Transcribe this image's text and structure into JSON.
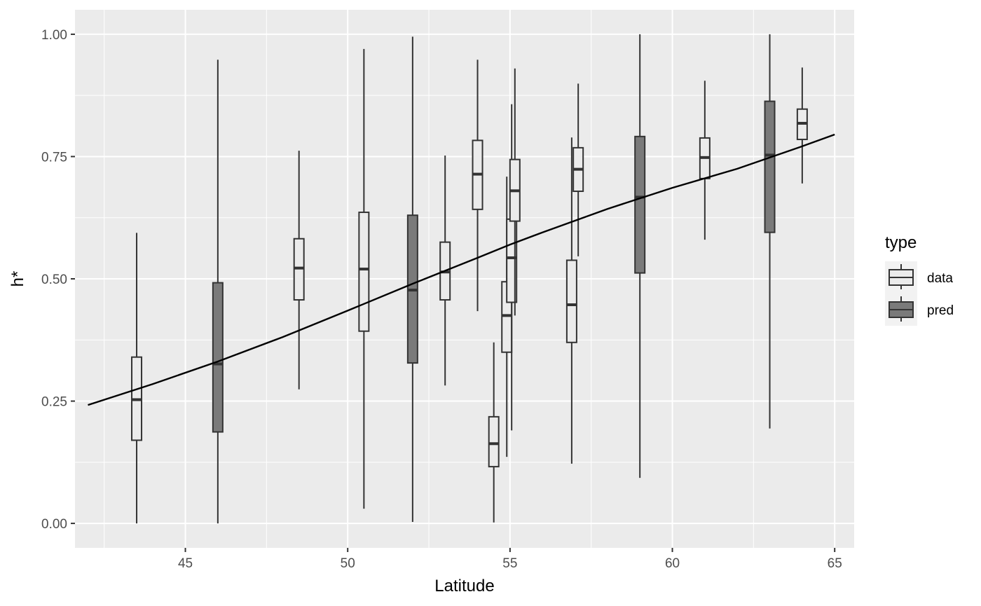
{
  "chart_data": {
    "type": "boxplot",
    "xlabel": "Latitude",
    "ylabel": "h*",
    "xlim": [
      41.6,
      65.6
    ],
    "ylim": [
      -0.05,
      1.05
    ],
    "x_ticks": [
      45,
      50,
      55,
      60,
      65
    ],
    "x_tick_labels": [
      "45",
      "50",
      "55",
      "60",
      "65"
    ],
    "y_ticks": [
      0,
      0.25,
      0.5,
      0.75,
      1.0
    ],
    "y_tick_labels": [
      "0.00",
      "0.25",
      "0.50",
      "0.75",
      "1.00"
    ],
    "grid": true,
    "legend": {
      "title": "type",
      "position": "right",
      "entries": [
        {
          "label": "data",
          "color": "#ebebeb"
        },
        {
          "label": "pred",
          "color": "#7a7a7a"
        }
      ]
    },
    "series": [
      {
        "name": "data",
        "color": "#ebebeb",
        "boxes": [
          {
            "x": 43.5,
            "min": 0.0,
            "q1": 0.17,
            "median": 0.253,
            "q3": 0.34,
            "max": 0.594
          },
          {
            "x": 48.5,
            "min": 0.274,
            "q1": 0.457,
            "median": 0.522,
            "q3": 0.582,
            "max": 0.762
          },
          {
            "x": 50.5,
            "min": 0.03,
            "q1": 0.393,
            "median": 0.52,
            "q3": 0.636,
            "max": 0.97
          },
          {
            "x": 53.0,
            "min": 0.282,
            "q1": 0.457,
            "median": 0.514,
            "q3": 0.575,
            "max": 0.752
          },
          {
            "x": 54.0,
            "min": 0.434,
            "q1": 0.642,
            "median": 0.714,
            "q3": 0.783,
            "max": 0.948
          },
          {
            "x": 54.5,
            "min": 0.002,
            "q1": 0.116,
            "median": 0.163,
            "q3": 0.218,
            "max": 0.37
          },
          {
            "x": 54.9,
            "min": 0.136,
            "q1": 0.35,
            "median": 0.425,
            "q3": 0.494,
            "max": 0.709
          },
          {
            "x": 55.05,
            "min": 0.19,
            "q1": 0.452,
            "median": 0.543,
            "q3": 0.622,
            "max": 0.857
          },
          {
            "x": 55.15,
            "min": 0.425,
            "q1": 0.618,
            "median": 0.68,
            "q3": 0.744,
            "max": 0.93
          },
          {
            "x": 56.9,
            "min": 0.122,
            "q1": 0.37,
            "median": 0.447,
            "q3": 0.538,
            "max": 0.789
          },
          {
            "x": 57.1,
            "min": 0.546,
            "q1": 0.679,
            "median": 0.724,
            "q3": 0.768,
            "max": 0.899
          },
          {
            "x": 61.0,
            "min": 0.58,
            "q1": 0.705,
            "median": 0.748,
            "q3": 0.788,
            "max": 0.905
          },
          {
            "x": 64.0,
            "min": 0.695,
            "q1": 0.785,
            "median": 0.818,
            "q3": 0.847,
            "max": 0.932
          }
        ]
      },
      {
        "name": "pred",
        "color": "#7a7a7a",
        "boxes": [
          {
            "x": 46.0,
            "min": 0.0,
            "q1": 0.187,
            "median": 0.326,
            "q3": 0.492,
            "max": 0.948
          },
          {
            "x": 52.0,
            "min": 0.003,
            "q1": 0.328,
            "median": 0.477,
            "q3": 0.63,
            "max": 0.995
          },
          {
            "x": 59.0,
            "min": 0.093,
            "q1": 0.512,
            "median": 0.667,
            "q3": 0.791,
            "max": 1.0
          },
          {
            "x": 63.0,
            "min": 0.194,
            "q1": 0.595,
            "median": 0.753,
            "q3": 0.863,
            "max": 1.0
          }
        ]
      }
    ],
    "curve": {
      "x": [
        42.0,
        44.0,
        46.0,
        48.0,
        50.0,
        52.0,
        54.0,
        55.0,
        56.0,
        58.0,
        60.0,
        62.0,
        64.0,
        65.0
      ],
      "y": [
        0.242,
        0.285,
        0.331,
        0.381,
        0.435,
        0.49,
        0.543,
        0.57,
        0.595,
        0.643,
        0.686,
        0.725,
        0.771,
        0.795
      ]
    }
  }
}
